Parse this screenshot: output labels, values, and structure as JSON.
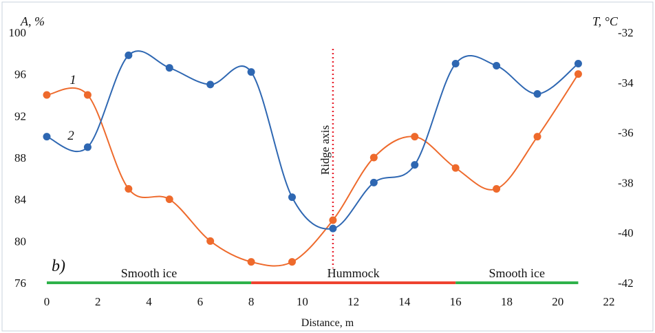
{
  "chart_data": {
    "type": "line",
    "panel_label": "b)",
    "xlabel": "Distance, m",
    "ylabel_left": "A, %",
    "ylabel_right": "T, °C",
    "xlim": [
      0,
      22
    ],
    "ylim_left": [
      76,
      100
    ],
    "ylim_right": [
      -42,
      -32
    ],
    "x_ticks": [
      "0",
      "2",
      "4",
      "6",
      "8",
      "10",
      "12",
      "14",
      "16",
      "18",
      "20",
      "22"
    ],
    "y_left_ticks": [
      "76",
      "80",
      "84",
      "88",
      "92",
      "96",
      "100"
    ],
    "y_right_ticks": [
      "-42",
      "-40",
      "-38",
      "-36",
      "-34",
      "-32"
    ],
    "grid": false,
    "series": [
      {
        "name": "1",
        "axis": "left",
        "color": "#ee6a2c",
        "x": [
          0,
          1.6,
          3.2,
          4.8,
          6.4,
          8,
          9.6,
          11.2,
          12.8,
          14.4,
          16,
          17.6,
          19.2,
          20.8
        ],
        "y": [
          94,
          94,
          85,
          84,
          80,
          78,
          78,
          82,
          88,
          90,
          87,
          85,
          90,
          96
        ]
      },
      {
        "name": "2",
        "axis": "left",
        "color": "#2e67b2",
        "x": [
          0,
          1.6,
          3.2,
          4.8,
          6.4,
          8,
          9.6,
          11.2,
          12.8,
          14.4,
          16,
          17.6,
          19.2,
          20.8
        ],
        "y": [
          90,
          89,
          97.8,
          96.6,
          95,
          96.2,
          84.2,
          81.2,
          85.6,
          87.3,
          97,
          96.8,
          94.1,
          97
        ]
      }
    ],
    "ridge_axis": {
      "x": 11.2,
      "label": "Ridge axis",
      "color": "#e8232f"
    },
    "segments": [
      {
        "label": "Smooth ice",
        "from": 0,
        "to": 8,
        "color": "#2fb24a"
      },
      {
        "label": "Hummock",
        "from": 8,
        "to": 16,
        "color": "#ee4330"
      },
      {
        "label": "Smooth ice",
        "from": 16,
        "to": 20.8,
        "color": "#2fb24a"
      }
    ]
  }
}
